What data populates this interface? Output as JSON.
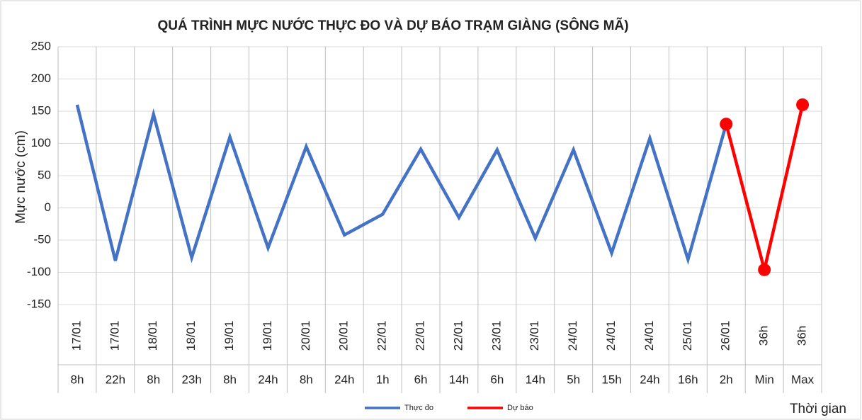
{
  "chart_data": {
    "type": "line",
    "title": "QUÁ TRÌNH MỰC NƯỚC THỰC ĐO VÀ DỰ BÁO TRẠM  GIÀNG (SÔNG MÃ)",
    "y_label": "Mực nước (cm)",
    "x_label": "Thời gian",
    "categories": [
      "17/01",
      "17/01",
      "18/01",
      "18/01",
      "19/01",
      "19/01",
      "20/01",
      "20/01",
      "22/01",
      "22/01",
      "22/01",
      "23/01",
      "23/01",
      "24/01",
      "24/01",
      "24/01",
      "25/01",
      "26/01",
      "36h",
      "36h"
    ],
    "subcategories": [
      "8h",
      "22h",
      "8h",
      "23h",
      "8h",
      "24h",
      "8h",
      "24h",
      "1h",
      "6h",
      "14h",
      "6h",
      "14h",
      "5h",
      "15h",
      "24h",
      "16h",
      "2h",
      "Min",
      "Max"
    ],
    "series": [
      {
        "name": "Thực đo",
        "color": "#4472c4",
        "values": [
          160,
          -82,
          145,
          -77,
          110,
          -62,
          95,
          -42,
          -10,
          91,
          -15,
          90,
          -47,
          90,
          -70,
          108,
          -80,
          130,
          null,
          null
        ]
      },
      {
        "name": "Dự báo",
        "color": "#ff0000",
        "markers": true,
        "values": [
          null,
          null,
          null,
          null,
          null,
          null,
          null,
          null,
          null,
          null,
          null,
          null,
          null,
          null,
          null,
          null,
          null,
          130,
          -96,
          160
        ]
      }
    ],
    "ylim": [
      -150,
      250
    ],
    "yticks": [
      -150,
      -100,
      -50,
      0,
      50,
      100,
      150,
      200,
      250
    ],
    "grid": true,
    "legend": "bottom"
  }
}
